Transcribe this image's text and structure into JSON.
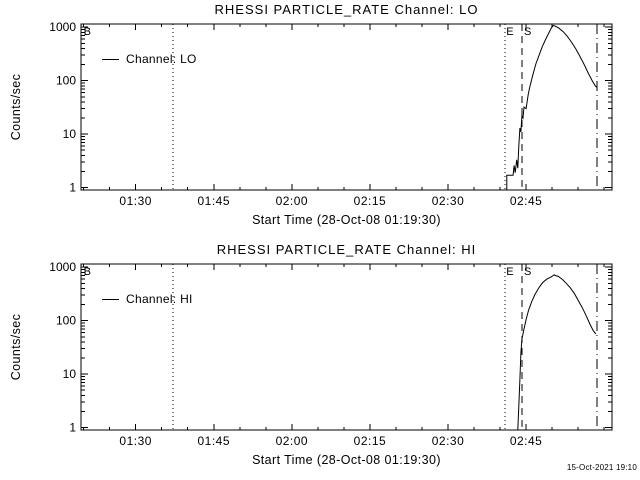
{
  "page": {
    "background": "#ffffff",
    "foreground": "#000000",
    "plot_generated_timestamp": "15-Oct-2021 19:10"
  },
  "chart_data": [
    {
      "type": "line",
      "title": "RHESSI PARTICLE_RATE Channel: LO",
      "xlabel": "Start Time (28-Oct-08 01:19:30)",
      "ylabel": "Counts/sec",
      "legend": {
        "label": "Channel: LO"
      },
      "x_axis": {
        "start_time": "01:19:30",
        "span_minutes": 102,
        "tick_labels": [
          "01:30",
          "01:45",
          "02:00",
          "02:15",
          "02:30",
          "02:45"
        ],
        "tick_minutes": [
          10.5,
          25.5,
          40.5,
          55.5,
          70.5,
          85.5
        ],
        "minor_tick_first_minute": 0.5,
        "minor_tick_step_minutes": 5
      },
      "y_axis": {
        "scale": "log",
        "tick_labels": [
          "1",
          "10",
          "100",
          "1000"
        ],
        "tick_values": [
          1,
          10,
          100,
          1000
        ],
        "vmin": 0.9,
        "vmax": 1150,
        "grid": false
      },
      "flags": [
        {
          "label": "B",
          "t_min": 1.2
        },
        {
          "label": "E",
          "t_min": 82.4
        },
        {
          "label": "S",
          "t_min": 85.8
        }
      ],
      "event_lines": [
        {
          "style": "dotted",
          "t_min": 17.7
        },
        {
          "style": "dotted",
          "t_min": 81.4
        },
        {
          "style": "dashed",
          "t_min": 84.7
        },
        {
          "style": "dashdot",
          "t_min": 99.1
        }
      ],
      "series": [
        {
          "name": "Channel: LO",
          "points": [
            [
              81.8,
              0.9
            ],
            [
              81.8,
              1.7
            ],
            [
              83.0,
              1.7
            ],
            [
              83.2,
              2.6
            ],
            [
              83.4,
              1.9
            ],
            [
              83.7,
              3.3
            ],
            [
              83.9,
              2.3
            ],
            [
              84.1,
              6
            ],
            [
              84.3,
              13
            ],
            [
              84.5,
              11
            ],
            [
              84.7,
              22
            ],
            [
              84.9,
              20
            ],
            [
              85.1,
              32
            ],
            [
              85.5,
              30
            ],
            [
              85.9,
              55
            ],
            [
              86.2,
              75
            ],
            [
              86.8,
              130
            ],
            [
              87.4,
              210
            ],
            [
              88.0,
              300
            ],
            [
              88.6,
              430
            ],
            [
              89.2,
              580
            ],
            [
              89.8,
              760
            ],
            [
              90.3,
              950
            ],
            [
              90.7,
              1080
            ],
            [
              91.2,
              1040
            ],
            [
              91.8,
              960
            ],
            [
              92.6,
              830
            ],
            [
              93.4,
              680
            ],
            [
              94.2,
              530
            ],
            [
              95.0,
              400
            ],
            [
              95.8,
              290
            ],
            [
              96.6,
              205
            ],
            [
              97.4,
              140
            ],
            [
              98.2,
              100
            ],
            [
              98.8,
              80
            ],
            [
              99.1,
              75
            ]
          ]
        }
      ]
    },
    {
      "type": "line",
      "title": "RHESSI PARTICLE_RATE Channel: HI",
      "xlabel": "Start Time (28-Oct-08 01:19:30)",
      "ylabel": "Counts/sec",
      "legend": {
        "label": "Channel: HI"
      },
      "x_axis": {
        "start_time": "01:19:30",
        "span_minutes": 102,
        "tick_labels": [
          "01:30",
          "01:45",
          "02:00",
          "02:15",
          "02:30",
          "02:45"
        ],
        "tick_minutes": [
          10.5,
          25.5,
          40.5,
          55.5,
          70.5,
          85.5
        ],
        "minor_tick_first_minute": 0.5,
        "minor_tick_step_minutes": 5
      },
      "y_axis": {
        "scale": "log",
        "tick_labels": [
          "1",
          "10",
          "100",
          "1000"
        ],
        "tick_values": [
          1,
          10,
          100,
          1000
        ],
        "vmin": 0.9,
        "vmax": 1150,
        "grid": false
      },
      "flags": [
        {
          "label": "B",
          "t_min": 1.2
        },
        {
          "label": "E",
          "t_min": 82.4
        },
        {
          "label": "S",
          "t_min": 85.8
        }
      ],
      "event_lines": [
        {
          "style": "dotted",
          "t_min": 17.7
        },
        {
          "style": "dotted",
          "t_min": 81.4
        },
        {
          "style": "dashed",
          "t_min": 84.7
        },
        {
          "style": "dashdot",
          "t_min": 99.1
        }
      ],
      "series": [
        {
          "name": "Channel: HI",
          "points": [
            [
              83.9,
              0.9
            ],
            [
              84.1,
              2.5
            ],
            [
              84.3,
              8
            ],
            [
              84.5,
              25
            ],
            [
              84.7,
              45
            ],
            [
              85.1,
              70
            ],
            [
              85.5,
              105
            ],
            [
              86.0,
              160
            ],
            [
              86.6,
              230
            ],
            [
              87.2,
              310
            ],
            [
              88.0,
              420
            ],
            [
              88.7,
              520
            ],
            [
              89.5,
              600
            ],
            [
              90.3,
              660
            ],
            [
              90.7,
              700
            ],
            [
              90.9,
              725
            ],
            [
              91.1,
              700
            ],
            [
              91.7,
              670
            ],
            [
              92.5,
              590
            ],
            [
              93.2,
              500
            ],
            [
              94.0,
              410
            ],
            [
              94.8,
              320
            ],
            [
              95.5,
              240
            ],
            [
              96.3,
              175
            ],
            [
              97.1,
              120
            ],
            [
              97.8,
              85
            ],
            [
              98.4,
              65
            ],
            [
              98.9,
              56
            ]
          ]
        }
      ]
    }
  ]
}
